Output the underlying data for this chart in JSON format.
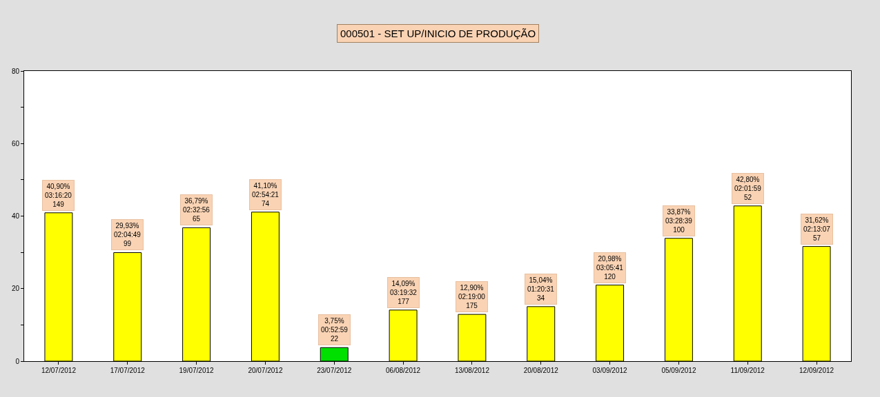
{
  "chart_data": {
    "type": "bar",
    "title": "000501 - SET UP/INICIO DE PRODUÇÃO",
    "categories": [
      "12/07/2012",
      "17/07/2012",
      "19/07/2012",
      "20/07/2012",
      "23/07/2012",
      "06/08/2012",
      "13/08/2012",
      "20/08/2012",
      "03/09/2012",
      "05/09/2012",
      "11/09/2012",
      "12/09/2012"
    ],
    "values": [
      40.9,
      29.93,
      36.79,
      41.1,
      3.75,
      14.09,
      12.9,
      15.04,
      20.98,
      33.87,
      42.8,
      31.62
    ],
    "colors": [
      "#ffff00",
      "#ffff00",
      "#ffff00",
      "#ffff00",
      "#00e000",
      "#ffff00",
      "#ffff00",
      "#ffff00",
      "#ffff00",
      "#ffff00",
      "#ffff00",
      "#ffff00"
    ],
    "value_labels": [
      "40,90%\n03:16:20\n149",
      "29,93%\n02:04:49\n99",
      "36,79%\n02:32:56\n65",
      "41,10%\n02:54:21\n74",
      "3,75%\n00:52:59\n22",
      "14,09%\n03:19:32\n177",
      "12,90%\n02:19:00\n175",
      "15,04%\n01:20:31\n34",
      "20,98%\n03:05:41\n120",
      "33,87%\n03:28:39\n100",
      "42,80%\n02:01:59\n52",
      "31,62%\n02:13:07\n57"
    ],
    "ylim": [
      0,
      80
    ],
    "yticks": [
      0,
      {
        "value": 10,
        "label": null
      },
      20,
      {
        "value": 30,
        "label": null
      },
      40,
      {
        "value": 50,
        "label": null
      },
      60,
      {
        "value": 70,
        "label": null
      },
      80
    ],
    "legend": false
  }
}
